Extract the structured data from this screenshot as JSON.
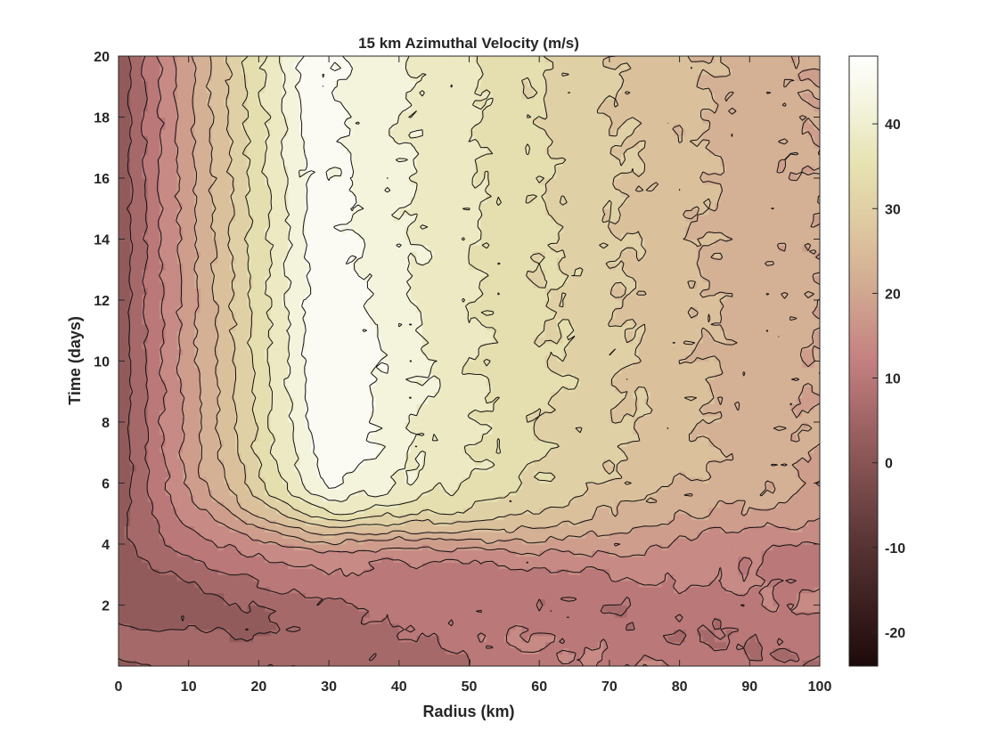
{
  "chart_data": {
    "type": "heatmap",
    "subtype": "filled-contour",
    "title": "15 km Azimuthal Velocity (m/s)",
    "xlabel": "Radius (km)",
    "ylabel": "Time (days)",
    "xlim": [
      0,
      100
    ],
    "ylim": [
      0,
      20
    ],
    "xticks": [
      0,
      10,
      20,
      30,
      40,
      50,
      60,
      70,
      80,
      90,
      100
    ],
    "yticks": [
      2,
      4,
      6,
      8,
      10,
      12,
      14,
      16,
      18,
      20
    ],
    "colorbar": {
      "range": [
        -24,
        48
      ],
      "ticks": [
        -20,
        -10,
        0,
        10,
        20,
        30,
        40
      ],
      "placement": "right"
    },
    "grid": false,
    "field_model": {
      "description_units": "m/s",
      "spin_up_center_day": 4.4,
      "spin_up_width_days": 0.6,
      "early_background": {
        "inner": 3,
        "outer": 10
      },
      "mature_peak_value": 46,
      "mature_peak_radius_km": 30,
      "mature_edge_value_at_100km": 20
    },
    "contour_levels": [
      4,
      8,
      12,
      16,
      20,
      24,
      28,
      32,
      36,
      40,
      44
    ]
  }
}
